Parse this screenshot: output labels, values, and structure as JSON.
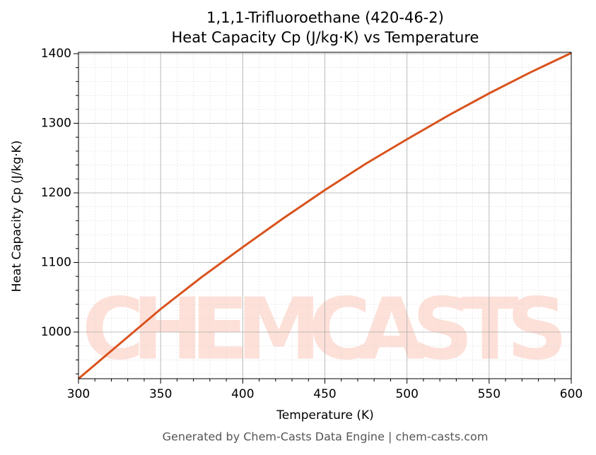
{
  "chart_data": {
    "type": "line",
    "title": "1,1,1-Trifluoroethane (420-46-2)",
    "subtitle": "Heat Capacity Cp (J/kg·K) vs Temperature",
    "x_label": "Temperature (K)",
    "y_label": "Heat Capacity Cp (J/kg·K)",
    "footer": "Generated by Chem-Casts Data Engine | chem-casts.com",
    "watermark": "CHEMCASTS",
    "x": [
      300,
      325,
      350,
      375,
      400,
      425,
      450,
      475,
      500,
      525,
      550,
      575,
      600
    ],
    "series": [
      {
        "name": "Cp",
        "color": "#d9531e",
        "values": [
          933,
          983,
          1033,
          1079,
          1122,
          1164,
          1204,
          1242,
          1277,
          1311,
          1343,
          1373,
          1401
        ]
      }
    ],
    "xlim": [
      300,
      600
    ],
    "ylim": [
      933,
      1402
    ],
    "xticks": [
      300,
      350,
      400,
      450,
      500,
      550,
      600
    ],
    "yticks": [
      1000,
      1100,
      1200,
      1300,
      1400
    ],
    "xminorticks": [
      310,
      320,
      330,
      340,
      360,
      370,
      380,
      390,
      410,
      420,
      430,
      440,
      460,
      470,
      480,
      490,
      510,
      520,
      530,
      540,
      560,
      570,
      580,
      590
    ],
    "yminorticks": [
      940,
      960,
      980,
      1020,
      1040,
      1060,
      1080,
      1120,
      1140,
      1160,
      1180,
      1220,
      1240,
      1260,
      1280,
      1320,
      1340,
      1360,
      1380
    ],
    "grid": true
  }
}
